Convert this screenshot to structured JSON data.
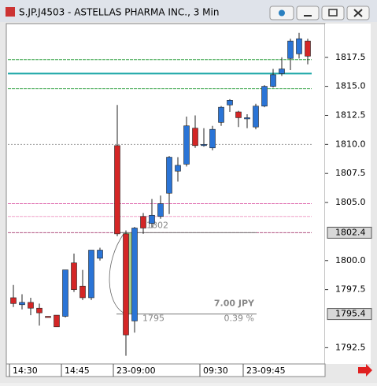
{
  "window": {
    "title": "S.JP.J4503 - ASTELLAS PHARMA INC., 3 Min"
  },
  "chart_data": {
    "type": "candlestick",
    "categories": [
      "14:30",
      null,
      null,
      null,
      null,
      null,
      "14:45",
      null,
      null,
      null,
      null,
      null,
      "23-09:00",
      null,
      null,
      null,
      null,
      null,
      null,
      null,
      null,
      null,
      "09:30",
      null,
      null,
      null,
      null,
      "23-09:45",
      null,
      null,
      null,
      null,
      null,
      null,
      null
    ],
    "open": [
      1796.8,
      1796.2,
      1796.4,
      1795.9,
      1795.2,
      1795.3,
      1795.2,
      1799.8,
      1797.8,
      1796.8,
      1800.2,
      null,
      1809.9,
      1802.3,
      1794.8,
      1803.8,
      1803.2,
      1803.8,
      1805.8,
      1807.7,
      1808.3,
      1811.4,
      1809.9,
      1809.7,
      1811.9,
      1813.4,
      1812.8,
      1812.2,
      1811.5,
      1813.3,
      1815.0,
      1816.1,
      1817.4,
      1817.8,
      1818.9
    ],
    "high": [
      1797.9,
      1797.1,
      1796.8,
      1796.3,
      1795.2,
      1795.3,
      1799.2,
      1800.6,
      1799.2,
      1800.9,
      1801.1,
      null,
      1813.4,
      1802.6,
      1802.9,
      1804.1,
      1805.3,
      1805.6,
      1809.0,
      1808.9,
      1812.4,
      1812.5,
      1811.4,
      1811.6,
      1813.3,
      1813.9,
      1812.9,
      1812.6,
      1813.5,
      1815.1,
      1816.5,
      1817.5,
      1819.1,
      1819.6,
      1819.1
    ],
    "low": [
      1796.0,
      1795.8,
      1795.3,
      1794.4,
      1795.1,
      1794.3,
      1795.1,
      1797.3,
      1796.6,
      1796.6,
      1800.0,
      null,
      1802.1,
      1791.8,
      1793.8,
      1802.3,
      1802.8,
      1803.6,
      1804.0,
      1806.8,
      1808.1,
      1809.7,
      1809.8,
      1809.5,
      1811.6,
      1812.8,
      1811.5,
      1811.4,
      1811.3,
      1813.2,
      1814.9,
      1815.9,
      1816.4,
      1817.4,
      1816.9
    ],
    "close": [
      1796.3,
      1796.4,
      1795.9,
      1795.5,
      1795.1,
      1794.3,
      1799.2,
      1797.5,
      1796.8,
      1800.9,
      1800.9,
      null,
      1802.3,
      1793.6,
      1802.8,
      1802.8,
      1803.9,
      1804.9,
      1808.9,
      1808.2,
      1811.6,
      1809.9,
      1810.0,
      1811.3,
      1813.2,
      1813.8,
      1812.3,
      1812.3,
      1813.3,
      1815.0,
      1816.0,
      1816.5,
      1818.9,
      1819.1,
      1817.6
    ],
    "up_color": "#2a74d6",
    "down_color": "#d42626",
    "ylim": [
      1791.1,
      1820.4
    ],
    "yticks": [
      {
        "value": 1792.5,
        "label": "1792.5"
      },
      1797.5,
      {
        "value": 1800,
        "label": "1800.0"
      },
      {
        "value": 1805,
        "label": "1805.0"
      },
      1807.5,
      {
        "value": 1810,
        "label": "1810.0"
      },
      1812.5,
      {
        "value": 1815,
        "label": "1815.0"
      },
      1817.5
    ],
    "hlines": [
      {
        "value": 1817.3,
        "color": "#3aa54a"
      },
      {
        "value": 1816.1,
        "color": "#1aa7a7"
      },
      {
        "value": 1814.8,
        "color": "#3aa54a"
      },
      {
        "value": 1810,
        "color": "#999999"
      },
      {
        "value": 1804.9,
        "color": "#e070b0"
      },
      {
        "value": 1803.8,
        "color": "#f0a0c8"
      },
      {
        "value": 1802.4,
        "color": "#b05080"
      }
    ],
    "price_markers": [
      {
        "value": 1802.4,
        "label": "1802.4"
      },
      {
        "value": 1795.4,
        "label": "1795.4"
      }
    ],
    "measure": {
      "from_label": "1802",
      "to_label": "1795",
      "change": "7.00 JPY",
      "percent": "0.39 %"
    }
  }
}
